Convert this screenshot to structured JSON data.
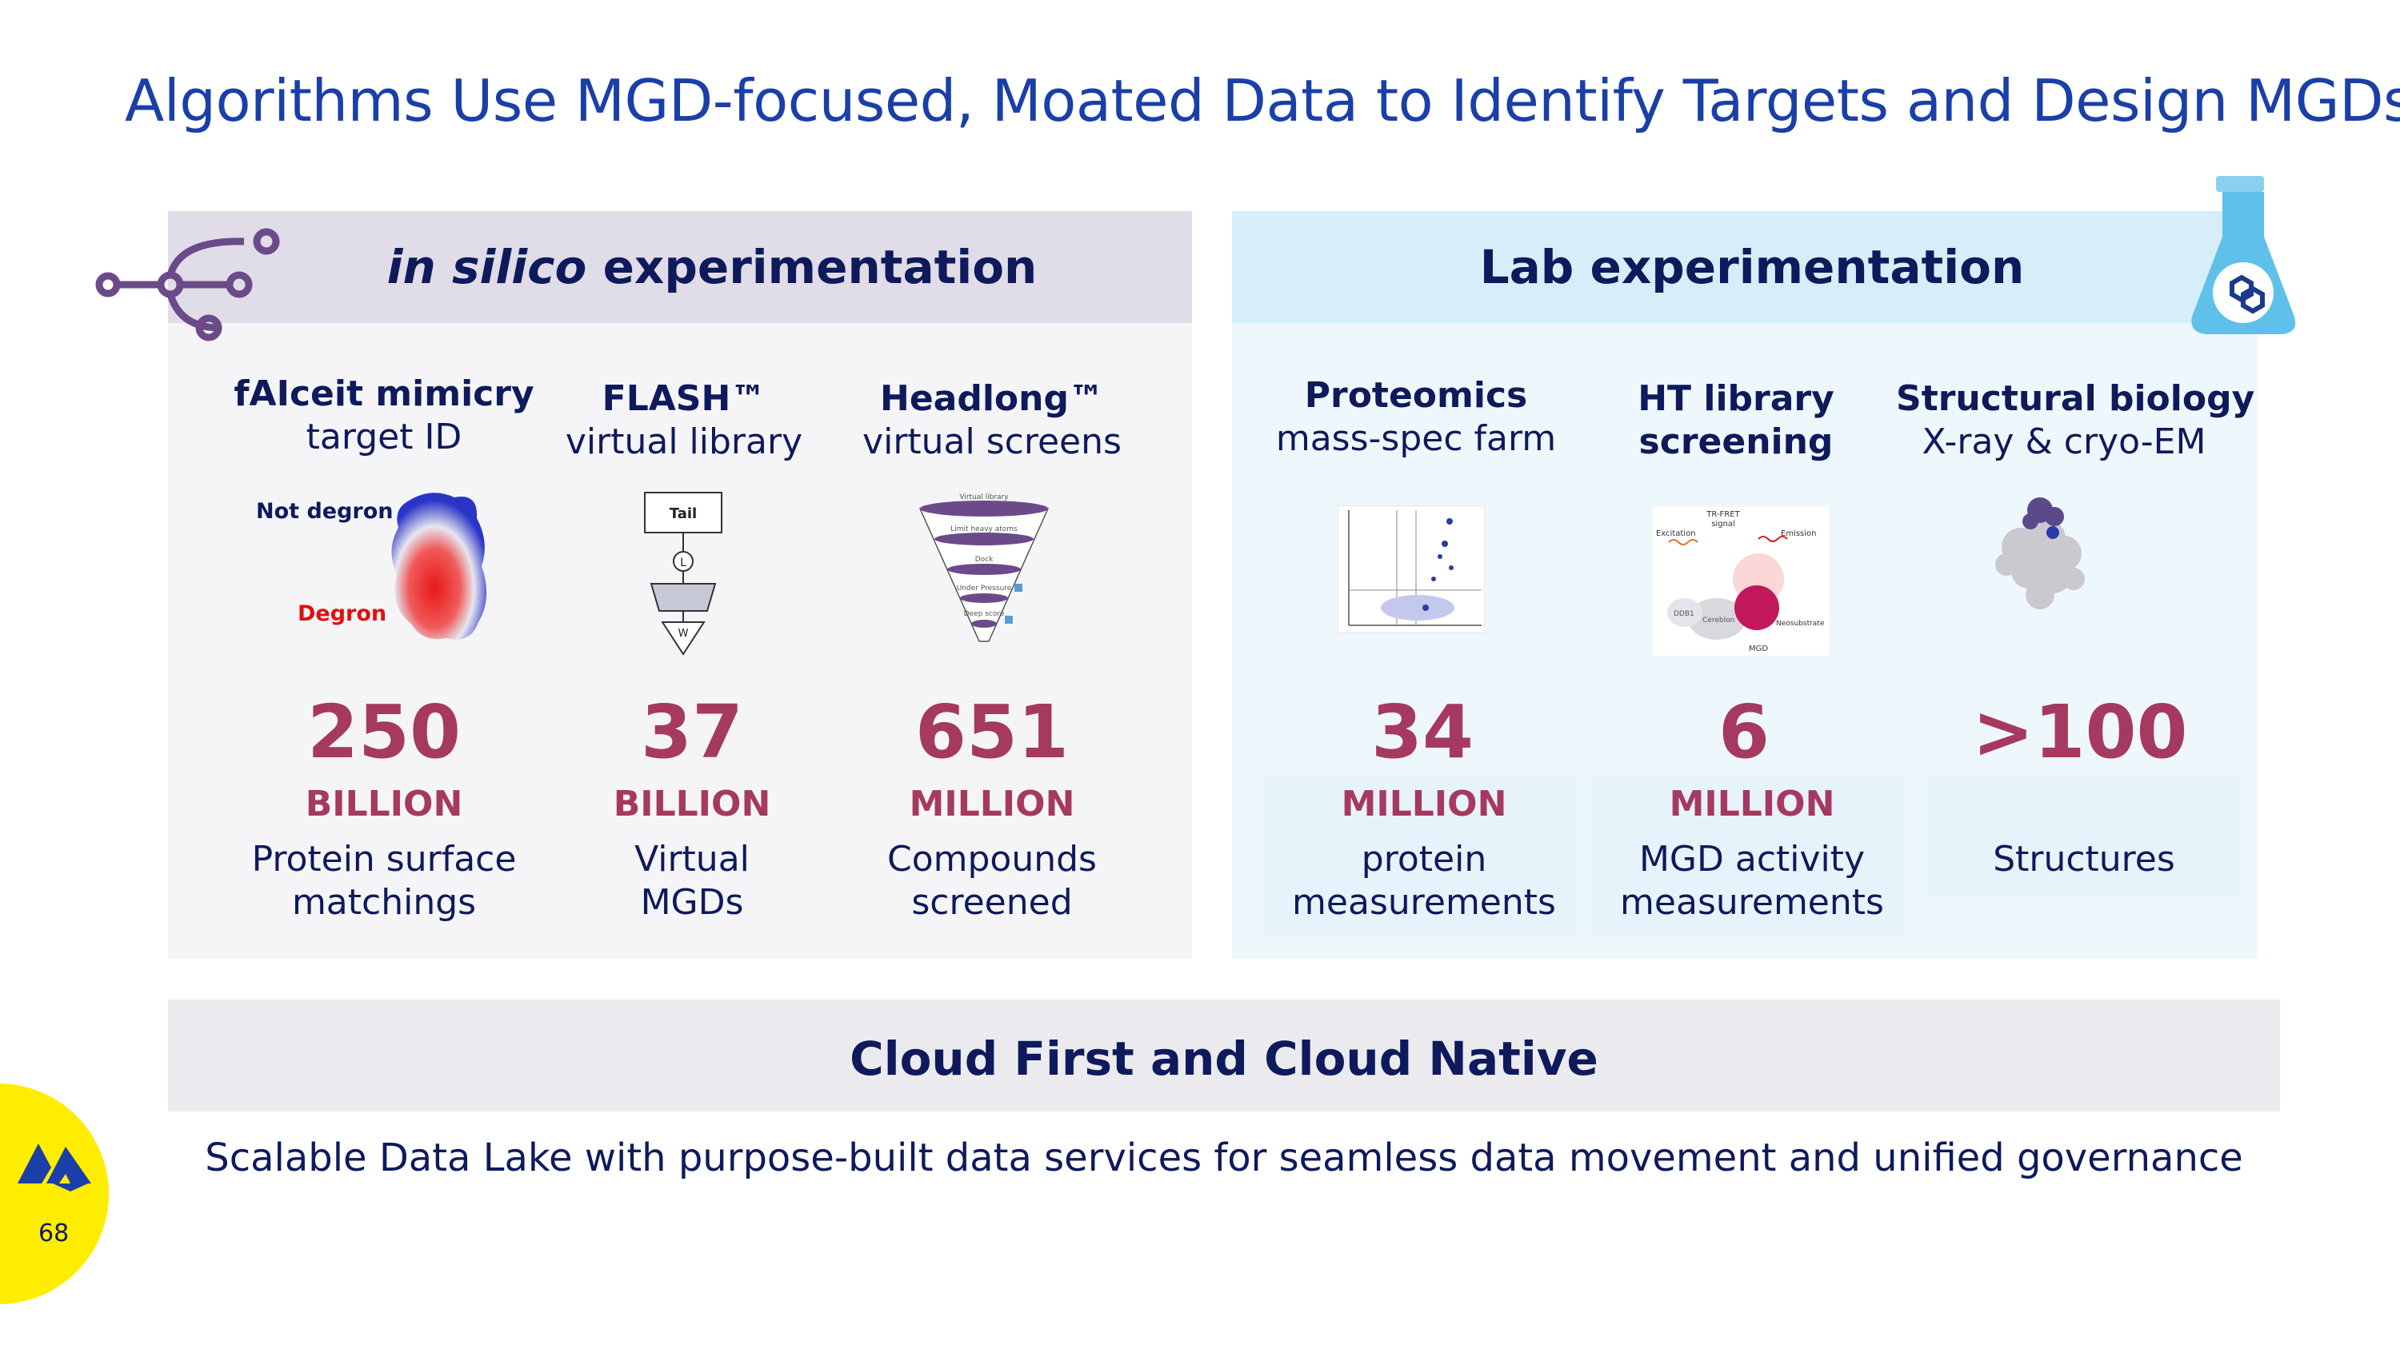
{
  "title": "Algorithms Use MGD-focused, Moated Data to Identify Targets and Design MGDs",
  "left_panel": {
    "header_italic": "in silico",
    "header_rest": "experimentation",
    "columns": [
      {
        "name": "fAIceit mimicry",
        "sub": "target ID",
        "value": "250",
        "unit": "BILLION",
        "desc1": "Protein surface",
        "desc2": "matchings"
      },
      {
        "name": "FLASH™",
        "sub": "virtual library",
        "value": "37",
        "unit": "BILLION",
        "desc1": "Virtual",
        "desc2": "MGDs"
      },
      {
        "name": "Headlong™",
        "sub": "virtual screens",
        "value": "651",
        "unit": "MILLION",
        "desc1": "Compounds",
        "desc2": "screened"
      }
    ],
    "degron_labels": {
      "not_degron": "Not degron",
      "degron": "Degron"
    },
    "flash_labels": {
      "tail": "Tail",
      "l": "L",
      "w": "W"
    },
    "funnel_labels": [
      "Virtual library",
      "Limit heavy atoms",
      "Dock",
      "Under Pressure",
      "Deep score"
    ]
  },
  "right_panel": {
    "header": "Lab experimentation",
    "columns": [
      {
        "name": "Proteomics",
        "sub": "mass-spec farm",
        "value": "34",
        "unit": "MILLION",
        "desc1": "protein",
        "desc2": "measurements"
      },
      {
        "name1": "HT library",
        "name2": "screening",
        "value": "6",
        "unit": "MILLION",
        "desc1": "MGD activity",
        "desc2": "measurements"
      },
      {
        "name": "Structural biology",
        "sub": "X-ray & cryo-EM",
        "value": ">100",
        "unit": "",
        "desc1": "Structures",
        "desc2": ""
      }
    ],
    "trfret_labels": {
      "signal1": "TR-FRET",
      "signal2": "signal",
      "excitation": "Excitation",
      "emission": "Emission",
      "ddb1": "DDB1",
      "cereblon": "Cereblon",
      "neosubstrate": "Neosubstrate",
      "mgd": "MGD"
    }
  },
  "cloud": {
    "heading": "Cloud First and Cloud Native",
    "description": "Scalable Data Lake with purpose-built data services for seamless data movement and unified governance"
  },
  "page_number": "68",
  "colors": {
    "title": "#1a3fa8",
    "navy": "#0e1a5c",
    "stat": "#a6395f",
    "accent_purple": "#6b4a8a",
    "flask_blue": "#5fc1ea",
    "badge": "#ffed00"
  }
}
